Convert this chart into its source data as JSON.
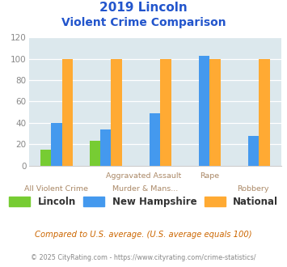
{
  "title_line1": "2019 Lincoln",
  "title_line2": "Violent Crime Comparison",
  "categories": [
    "All Violent Crime",
    "Aggravated Assault",
    "Murder & Mans...",
    "Rape",
    "Robbery"
  ],
  "xtick_row1": [
    "",
    "Aggravated Assault",
    "Assault",
    "Rape",
    ""
  ],
  "xtick_row2": [
    "All Violent Crime",
    "",
    "Murder & Mans...",
    "",
    "Robbery"
  ],
  "lincoln": [
    15,
    23,
    0,
    0,
    0
  ],
  "new_hampshire": [
    40,
    34,
    49,
    103,
    28
  ],
  "national": [
    100,
    100,
    100,
    100,
    100
  ],
  "lincoln_color": "#77cc33",
  "nh_color": "#4499ee",
  "national_color": "#ffaa33",
  "bg_color": "#dce8ed",
  "title_color": "#2255cc",
  "xtick_color": "#aa8866",
  "ytick_color": "#888888",
  "legend_color": "#333333",
  "footnote1": "Compared to U.S. average. (U.S. average equals 100)",
  "footnote2": "© 2025 CityRating.com - https://www.cityrating.com/crime-statistics/",
  "footnote1_color": "#cc6600",
  "footnote2_color": "#888888",
  "ylim": [
    0,
    120
  ],
  "yticks": [
    0,
    20,
    40,
    60,
    80,
    100,
    120
  ],
  "bar_width": 0.22
}
